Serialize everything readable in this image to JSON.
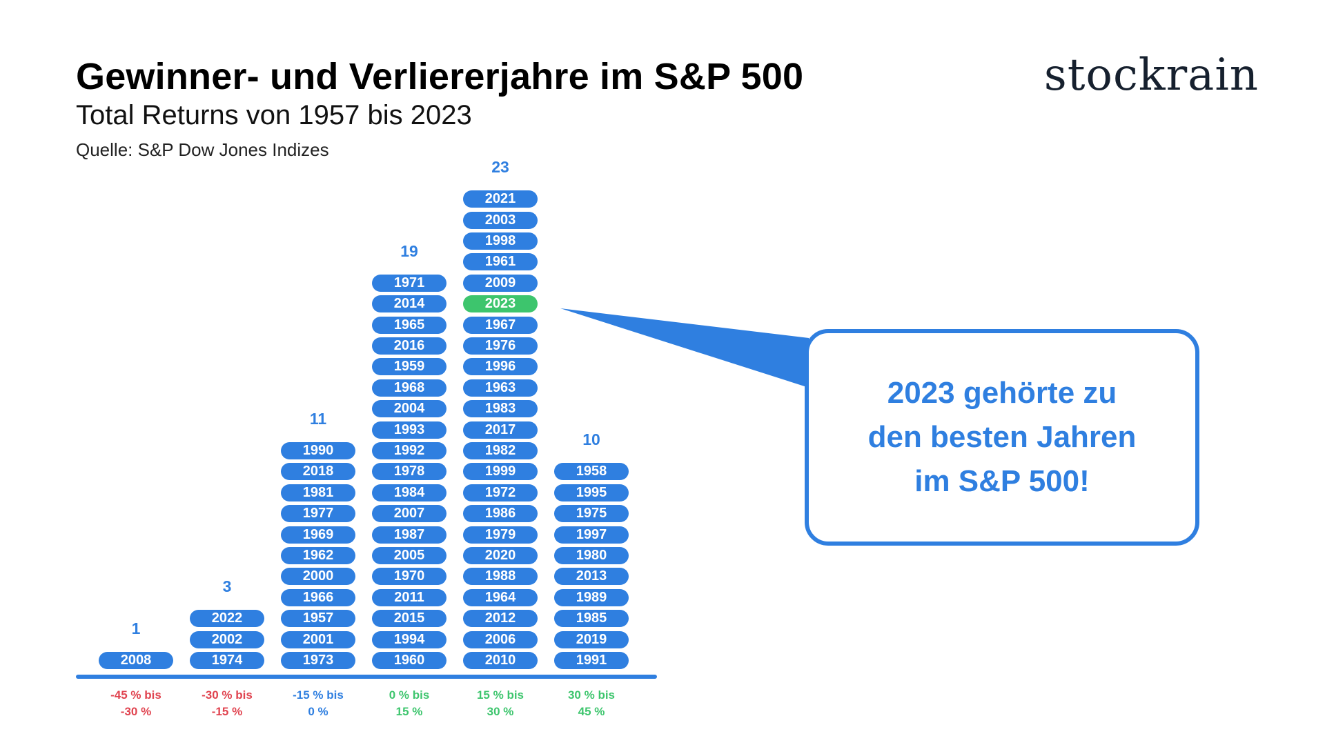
{
  "header": {
    "title": "Gewinner- und Verliererjahre im S&P 500",
    "subtitle": "Total Returns von 1957 bis 2023",
    "source": "Quelle: S&P Dow Jones Indizes"
  },
  "brand": {
    "name": "stockrain"
  },
  "callout": {
    "lines": [
      "2023 gehörte zu",
      "den besten Jahren",
      "im S&P 500!"
    ]
  },
  "colors": {
    "accent": "#2f7fe0",
    "highlight": "#3dc56d",
    "negative": "#e0434f",
    "neutral": "#2f7fe0",
    "positive": "#3dc56d"
  },
  "chart_data": {
    "type": "bar",
    "title": "Gewinner- und Verliererjahre im S&P 500",
    "highlight_year": "2023",
    "categories": [
      {
        "range_line1": "-45 % bis",
        "range_line2": "-30 %",
        "tone": "negative",
        "count": "1",
        "years": [
          "2008"
        ]
      },
      {
        "range_line1": "-30 % bis",
        "range_line2": "-15 %",
        "tone": "negative",
        "count": "3",
        "years": [
          "2022",
          "2002",
          "1974"
        ]
      },
      {
        "range_line1": "-15 % bis",
        "range_line2": "0 %",
        "tone": "neutral",
        "count": "11",
        "years": [
          "1990",
          "2018",
          "1981",
          "1977",
          "1969",
          "1962",
          "2000",
          "1966",
          "1957",
          "2001",
          "1973"
        ]
      },
      {
        "range_line1": "0 % bis",
        "range_line2": "15 %",
        "tone": "positive",
        "count": "19",
        "years": [
          "1971",
          "2014",
          "1965",
          "2016",
          "1959",
          "1968",
          "2004",
          "1993",
          "1992",
          "1978",
          "1984",
          "2007",
          "1987",
          "2005",
          "1970",
          "2011",
          "2015",
          "1994",
          "1960"
        ]
      },
      {
        "range_line1": "15 % bis",
        "range_line2": "30 %",
        "tone": "positive",
        "count": "23",
        "years": [
          "2021",
          "2003",
          "1998",
          "1961",
          "2009",
          "2023",
          "1967",
          "1976",
          "1996",
          "1963",
          "1983",
          "2017",
          "1982",
          "1999",
          "1972",
          "1986",
          "1979",
          "2020",
          "1988",
          "1964",
          "2012",
          "2006",
          "2010"
        ]
      },
      {
        "range_line1": "30 % bis",
        "range_line2": "45 %",
        "tone": "positive",
        "count": "10",
        "years": [
          "1958",
          "1995",
          "1975",
          "1997",
          "1980",
          "2013",
          "1989",
          "1985",
          "2019",
          "1991"
        ]
      }
    ]
  }
}
